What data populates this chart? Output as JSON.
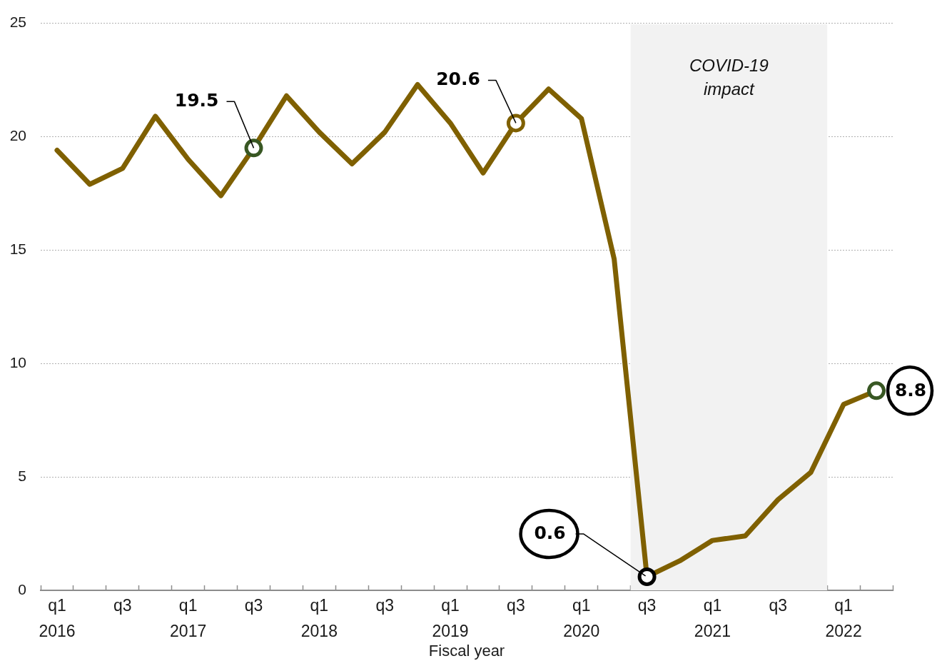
{
  "chart_data": {
    "type": "line",
    "xlabel": "Fiscal year",
    "categories": [
      "q1\n2016",
      null,
      "q3",
      null,
      "q1\n2017",
      null,
      "q3",
      null,
      "q1\n2018",
      null,
      "q3",
      null,
      "q1\n2019",
      null,
      "q3",
      null,
      "q1\n2020",
      null,
      "q3",
      null,
      "q1\n2021",
      null,
      "q3",
      null,
      "q1\n2022",
      null
    ],
    "ylim": [
      0,
      25
    ],
    "yticks": [
      0,
      5,
      10,
      15,
      20,
      25
    ],
    "grid": "y",
    "series": [
      {
        "type": "line",
        "color": "#7f6000",
        "values": [
          19.4,
          17.9,
          18.6,
          20.9,
          19.0,
          17.4,
          19.5,
          21.8,
          20.2,
          18.8,
          20.2,
          22.3,
          20.6,
          18.4,
          20.6,
          22.1,
          20.8,
          14.6,
          0.6,
          1.3,
          2.2,
          2.4,
          4.0,
          5.2,
          8.2,
          8.8
        ],
        "colors": [
          null,
          null,
          null,
          null,
          null,
          null,
          "#385723",
          null,
          null,
          null,
          null,
          null,
          null,
          null,
          "#7f6000",
          null,
          null,
          null,
          "#000000",
          null,
          null,
          null,
          null,
          null,
          null,
          "#385723"
        ],
        "value_labels": [
          null,
          null,
          null,
          null,
          null,
          null,
          "19.5",
          null,
          null,
          null,
          null,
          null,
          null,
          null,
          "20.6",
          null,
          null,
          null,
          "0.6",
          null,
          null,
          null,
          null,
          null,
          null,
          "8.8"
        ]
      }
    ],
    "annotations": [
      "COVID-19\nimpact"
    ]
  }
}
